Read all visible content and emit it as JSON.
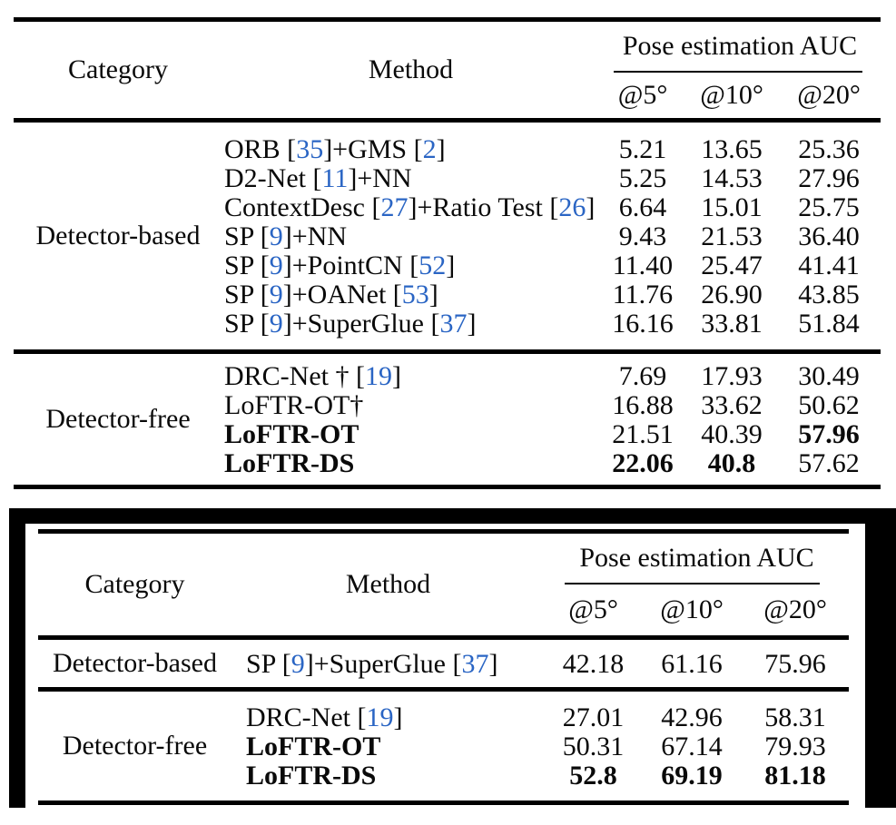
{
  "colors": {
    "cite_blue": "#2a65c4",
    "rule_black": "#000000",
    "frame_black": "#000000",
    "background": "#ffffff"
  },
  "table1": {
    "header": {
      "category": "Category",
      "method": "Method",
      "auc_group": "Pose estimation AUC",
      "cols": [
        "@5°",
        "@10°",
        "@20°"
      ]
    },
    "groups": [
      {
        "category": "Detector-based",
        "rows": [
          {
            "m": [
              "ORB [",
              "35",
              "]+GMS [",
              "2",
              "]"
            ],
            "v": [
              "5.21",
              "13.65",
              "25.36"
            ]
          },
          {
            "m": [
              "D2-Net [",
              "11",
              "]+NN"
            ],
            "v": [
              "5.25",
              "14.53",
              "27.96"
            ]
          },
          {
            "m": [
              "ContextDesc [",
              "27",
              "]+Ratio Test [",
              "26",
              "]"
            ],
            "v": [
              "6.64",
              "15.01",
              "25.75"
            ]
          },
          {
            "m": [
              "SP [",
              "9",
              "]+NN"
            ],
            "v": [
              "9.43",
              "21.53",
              "36.40"
            ]
          },
          {
            "m": [
              "SP [",
              "9",
              "]+PointCN [",
              "52",
              "]"
            ],
            "v": [
              "11.40",
              "25.47",
              "41.41"
            ]
          },
          {
            "m": [
              "SP [",
              "9",
              "]+OANet [",
              "53",
              "]"
            ],
            "v": [
              "11.76",
              "26.90",
              "43.85"
            ]
          },
          {
            "m": [
              "SP [",
              "9",
              "]+SuperGlue [",
              "37",
              "]"
            ],
            "v": [
              "16.16",
              "33.81",
              "51.84"
            ]
          }
        ]
      },
      {
        "category": "Detector-free",
        "rows": [
          {
            "m": [
              "DRC-Net † [",
              "19",
              "]"
            ],
            "v": [
              "7.69",
              "17.93",
              "30.49"
            ]
          },
          {
            "m": [
              "LoFTR-OT†"
            ],
            "v": [
              "16.88",
              "33.62",
              "50.62"
            ]
          },
          {
            "m": [
              "LoFTR-OT"
            ],
            "v": [
              "21.51",
              "40.39",
              "57.96"
            ]
          },
          {
            "m": [
              "LoFTR-DS"
            ],
            "v": [
              "22.06",
              "40.8",
              "57.62"
            ]
          }
        ]
      }
    ]
  },
  "table2": {
    "header": {
      "category": "Category",
      "method": "Method",
      "auc_group": "Pose estimation AUC",
      "cols": [
        "@5°",
        "@10°",
        "@20°"
      ]
    },
    "groups": [
      {
        "category": "Detector-based",
        "rows": [
          {
            "m": [
              "SP [",
              "9",
              "]+SuperGlue [",
              "37",
              "]"
            ],
            "v": [
              "42.18",
              "61.16",
              "75.96"
            ]
          }
        ]
      },
      {
        "category": "Detector-free",
        "rows": [
          {
            "m": [
              "DRC-Net [",
              "19",
              "]"
            ],
            "v": [
              "27.01",
              "42.96",
              "58.31"
            ]
          },
          {
            "m": [
              "LoFTR-OT"
            ],
            "v": [
              "50.31",
              "67.14",
              "79.93"
            ]
          },
          {
            "m": [
              "LoFTR-DS"
            ],
            "v": [
              "52.8",
              "69.19",
              "81.18"
            ]
          }
        ]
      }
    ]
  }
}
